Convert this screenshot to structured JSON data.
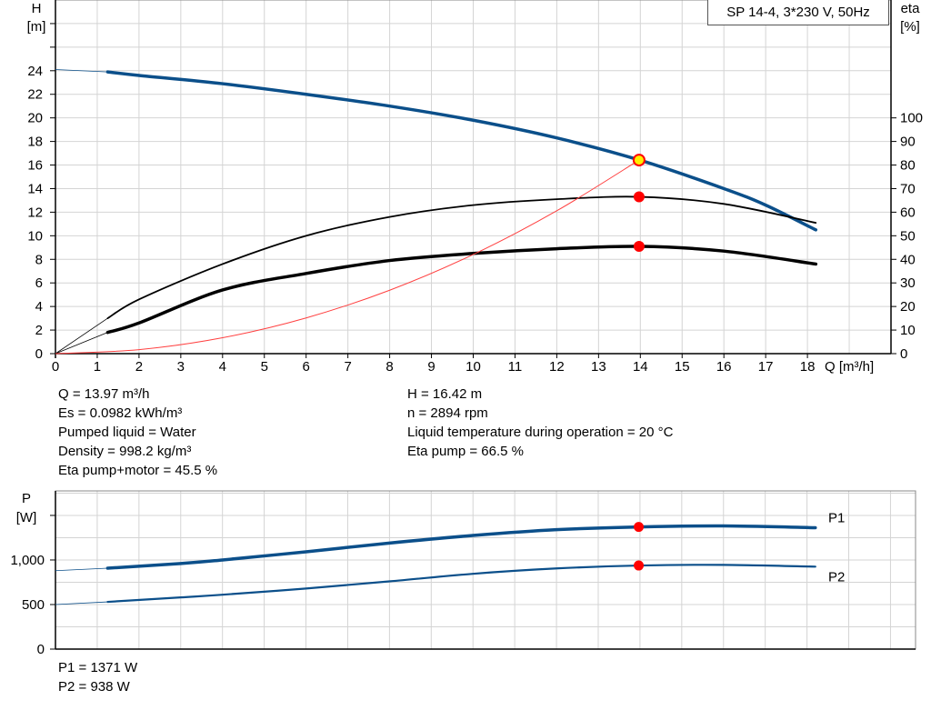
{
  "model_label": "SP 14-4, 3*230 V, 50Hz",
  "colors": {
    "curve_blue": "#0b4f8a",
    "eff_black": "#000000",
    "system_red": "#ff4040",
    "point_red": "#ff0000",
    "duty_yellow": "#ffee00",
    "grid": "#d4d4d4"
  },
  "info_left": [
    "Q = 13.97 m³/h",
    "Es = 0.0982 kWh/m³",
    "Pumped liquid = Water",
    "Density = 998.2 kg/m³",
    "Eta pump+motor = 45.5 %"
  ],
  "info_right": [
    "H = 16.42 m",
    "n = 2894 rpm",
    "Liquid temperature during operation = 20 °C",
    "Eta pump = 66.5 %"
  ],
  "power_info": [
    "P1 = 1371 W",
    "P2 = 938 W"
  ],
  "chart_data": [
    {
      "type": "line",
      "xlabel": "Q [m³/h]",
      "ylabel_left": [
        "H",
        "[m]"
      ],
      "ylabel_right": [
        "eta",
        "[%]"
      ],
      "x_ticks": [
        0,
        1,
        2,
        3,
        4,
        5,
        6,
        7,
        8,
        9,
        10,
        11,
        12,
        13,
        14,
        15,
        16,
        17,
        18
      ],
      "y_left_ticks": [
        0,
        2,
        4,
        6,
        8,
        10,
        12,
        14,
        16,
        18,
        20,
        22,
        24
      ],
      "y_right_ticks": [
        0,
        10,
        20,
        30,
        40,
        50,
        60,
        70,
        80,
        90,
        100
      ],
      "xlim": [
        0,
        20
      ],
      "ylim_left": [
        0,
        30
      ],
      "ylim_right": [
        0,
        150
      ],
      "grid": true,
      "series": [
        {
          "axis": "left",
          "style": "head",
          "points": [
            [
              0,
              24.1
            ],
            [
              1.25,
              23.9
            ],
            [
              2,
              23.6
            ],
            [
              4,
              22.9
            ],
            [
              6,
              22.0
            ],
            [
              8,
              21.0
            ],
            [
              10,
              19.8
            ],
            [
              12,
              18.3
            ],
            [
              14,
              16.4
            ],
            [
              16,
              14.0
            ],
            [
              17,
              12.6
            ],
            [
              18.2,
              10.5
            ]
          ]
        },
        {
          "axis": "right",
          "style": "eta-pump",
          "points": [
            [
              0,
              0
            ],
            [
              1.25,
              15
            ],
            [
              2,
              23
            ],
            [
              4,
              38
            ],
            [
              6,
              50
            ],
            [
              8,
              58
            ],
            [
              10,
              63
            ],
            [
              12,
              65.5
            ],
            [
              14,
              66.5
            ],
            [
              16,
              63.5
            ],
            [
              18.2,
              55.5
            ]
          ]
        },
        {
          "axis": "right",
          "style": "eta-total",
          "points": [
            [
              0,
              0
            ],
            [
              1.25,
              9
            ],
            [
              2,
              13
            ],
            [
              4,
              27
            ],
            [
              6,
              34
            ],
            [
              8,
              39.5
            ],
            [
              10,
              42.5
            ],
            [
              12,
              44.5
            ],
            [
              14,
              45.5
            ],
            [
              16,
              43.5
            ],
            [
              18.2,
              38
            ]
          ]
        },
        {
          "axis": "left",
          "style": "system",
          "points": [
            [
              0,
              0
            ],
            [
              2,
              0.34
            ],
            [
              4,
              1.35
            ],
            [
              6,
              3.03
            ],
            [
              8,
              5.38
            ],
            [
              10,
              8.41
            ],
            [
              12,
              12.12
            ],
            [
              13.97,
              16.42
            ]
          ]
        }
      ],
      "markers": [
        {
          "axis": "left",
          "x": 13.97,
          "y": 16.42,
          "kind": "duty"
        },
        {
          "axis": "right",
          "x": 13.97,
          "y": 66.5,
          "kind": "point"
        },
        {
          "axis": "right",
          "x": 13.97,
          "y": 45.5,
          "kind": "point"
        }
      ]
    },
    {
      "type": "line",
      "ylabel": [
        "P",
        "[W]"
      ],
      "y_ticks": [
        0,
        500,
        1000,
        1500
      ],
      "y_tick_labels": [
        "0",
        "500",
        "1,000",
        ""
      ],
      "xlim": [
        0,
        20.6
      ],
      "ylim": [
        0,
        1775
      ],
      "grid": true,
      "series": [
        {
          "name": "P1",
          "style": "p1",
          "points": [
            [
              0,
              880
            ],
            [
              1.25,
              908
            ],
            [
              3,
              960
            ],
            [
              4,
              1000
            ],
            [
              6,
              1092
            ],
            [
              8,
              1190
            ],
            [
              10,
              1275
            ],
            [
              12,
              1340
            ],
            [
              14,
              1371
            ],
            [
              16,
              1382
            ],
            [
              18.2,
              1362
            ]
          ]
        },
        {
          "name": "P2",
          "style": "p2",
          "points": [
            [
              0,
              500
            ],
            [
              1.25,
              530
            ],
            [
              3,
              580
            ],
            [
              4,
              610
            ],
            [
              6,
              680
            ],
            [
              8,
              760
            ],
            [
              10,
              845
            ],
            [
              12,
              905
            ],
            [
              14,
              938
            ],
            [
              16,
              945
            ],
            [
              18.2,
              925
            ]
          ]
        }
      ],
      "markers": [
        {
          "x": 13.97,
          "y": 1371,
          "kind": "point"
        },
        {
          "x": 13.97,
          "y": 938,
          "kind": "point"
        }
      ]
    }
  ]
}
